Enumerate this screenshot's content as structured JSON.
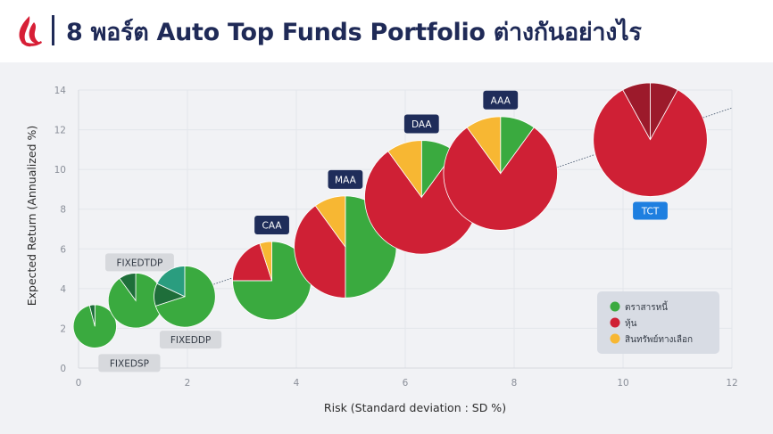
{
  "header": {
    "title": "8 พอร์ต Auto Top Funds Portfolio ต่างกันอย่างไร"
  },
  "colors": {
    "green": "#3aaa3f",
    "red": "#cf2035",
    "yellow": "#f7b733",
    "dark_green": "#1e6e3a",
    "teal": "#2a9d7f",
    "dark_red": "#9c1a2b",
    "navy": "#1f2d5a",
    "blue": "#1e7fe0",
    "grid": "#e2e5ea"
  },
  "chart_data": {
    "type": "scatter",
    "subtype": "bubble-pie",
    "xlabel": "Risk (Standard deviation : SD %)",
    "ylabel": "Expected Return (Annualized %)",
    "xlim": [
      0,
      12
    ],
    "ylim": [
      0,
      14
    ],
    "xticks": [
      "0",
      "2",
      "4",
      "6",
      "8",
      "10",
      "12"
    ],
    "yticks": [
      "0",
      "2",
      "4",
      "6",
      "8",
      "10",
      "12",
      "14"
    ],
    "trendline": {
      "from": [
        0,
        1.9
      ],
      "to": [
        12,
        13.1
      ]
    },
    "legend": {
      "position": "bottom-right",
      "items": [
        {
          "label": "ตราสารหนี้",
          "color": "#3aaa3f"
        },
        {
          "label": "หุ้น",
          "color": "#cf2035"
        },
        {
          "label": "สินทรัพย์ทางเลือก",
          "color": "#f7b733"
        }
      ]
    },
    "points": [
      {
        "name": "FIXEDSP",
        "x": 0.3,
        "y": 2.1,
        "size": 0.55,
        "label_style": "grey",
        "label_position": "below-right",
        "slices": [
          {
            "value": 96,
            "color": "#3aaa3f"
          },
          {
            "value": 4,
            "color": "#1e6e3a"
          }
        ]
      },
      {
        "name": "FIXEDTDP",
        "x": 1.05,
        "y": 3.4,
        "size": 0.7,
        "label_style": "grey",
        "label_position": "above",
        "slices": [
          {
            "value": 90,
            "color": "#3aaa3f"
          },
          {
            "value": 10,
            "color": "#1e6e3a"
          }
        ]
      },
      {
        "name": "FIXEDDP",
        "x": 1.95,
        "y": 3.6,
        "size": 0.78,
        "label_style": "grey",
        "label_position": "below",
        "slices": [
          {
            "value": 70,
            "color": "#3aaa3f"
          },
          {
            "value": 12,
            "color": "#1e6e3a"
          },
          {
            "value": 18,
            "color": "#2a9d7f"
          }
        ]
      },
      {
        "name": "CAA",
        "x": 3.55,
        "y": 4.4,
        "size": 1.0,
        "label_style": "navy",
        "label_position": "above",
        "slices": [
          {
            "value": 75,
            "color": "#3aaa3f"
          },
          {
            "value": 20,
            "color": "#cf2035"
          },
          {
            "value": 5,
            "color": "#f7b733"
          }
        ]
      },
      {
        "name": "MAA",
        "x": 4.9,
        "y": 6.1,
        "size": 1.3,
        "label_style": "navy",
        "label_position": "above",
        "slices": [
          {
            "value": 50,
            "color": "#3aaa3f"
          },
          {
            "value": 40,
            "color": "#cf2035"
          },
          {
            "value": 10,
            "color": "#f7b733"
          }
        ]
      },
      {
        "name": "DAA",
        "x": 6.3,
        "y": 8.6,
        "size": 1.45,
        "label_style": "navy",
        "label_position": "above",
        "slices": [
          {
            "value": 10,
            "color": "#3aaa3f"
          },
          {
            "value": 80,
            "color": "#cf2035"
          },
          {
            "value": 10,
            "color": "#f7b733"
          }
        ]
      },
      {
        "name": "AAA",
        "x": 7.75,
        "y": 9.8,
        "size": 1.45,
        "label_style": "navy",
        "label_position": "above",
        "slices": [
          {
            "value": 10,
            "color": "#3aaa3f"
          },
          {
            "value": 80,
            "color": "#cf2035"
          },
          {
            "value": 10,
            "color": "#f7b733"
          }
        ]
      },
      {
        "name": "TCT",
        "x": 10.5,
        "y": 11.5,
        "size": 1.45,
        "label_style": "blue",
        "label_position": "below",
        "slices": [
          {
            "value": 8,
            "color": "#9c1a2b"
          },
          {
            "value": 84,
            "color": "#cf2035"
          },
          {
            "value": 8,
            "color": "#9c1a2b"
          }
        ]
      }
    ]
  }
}
